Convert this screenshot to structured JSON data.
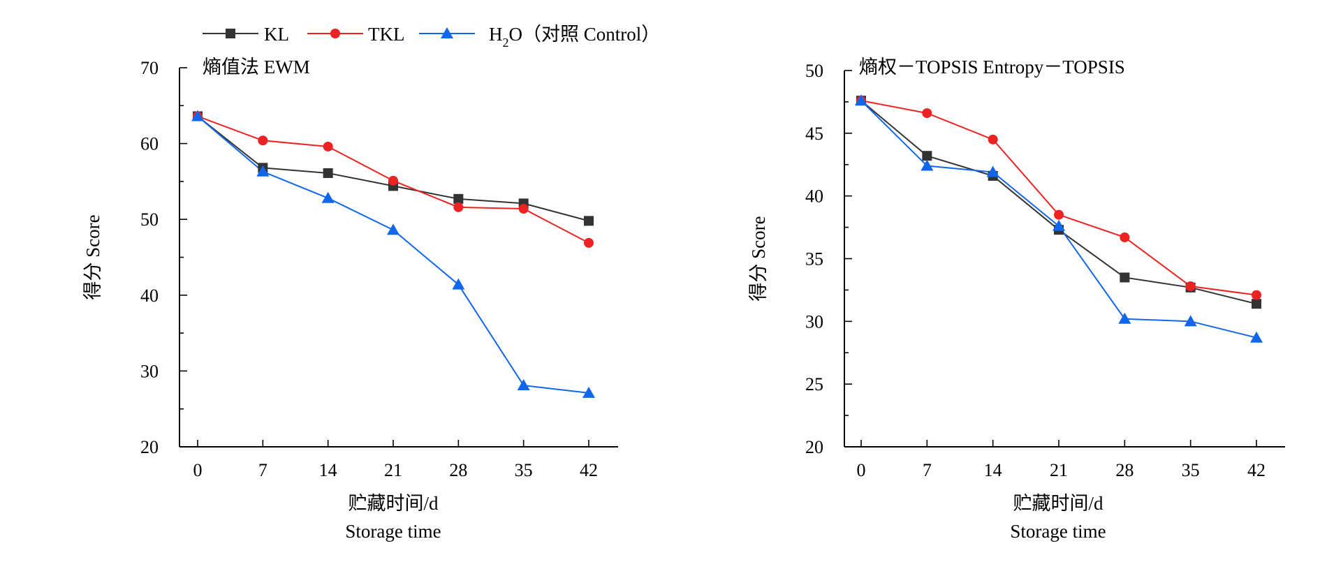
{
  "legend": [
    {
      "series": "KL",
      "label": "KL",
      "color": "#333333",
      "marker": "square"
    },
    {
      "series": "TKL",
      "label": "TKL",
      "color": "#ee2222",
      "marker": "circle"
    },
    {
      "series": "H2O",
      "label_main": "H",
      "label_sub": "2",
      "label_rest": "O（对照 Control）",
      "color": "#1166ee",
      "marker": "triangle"
    }
  ],
  "chart_data": [
    {
      "type": "line",
      "title": "熵值法 EWM",
      "xlabel": "贮藏时间/d",
      "xlabel_en": "Storage time",
      "ylabel": "得分  Score",
      "x": [
        0,
        7,
        14,
        21,
        28,
        35,
        42
      ],
      "ylim": [
        20,
        70
      ],
      "yticks": [
        20,
        30,
        40,
        50,
        60,
        70
      ],
      "grid": false,
      "legend_position": "top-left",
      "series": [
        {
          "name": "KL",
          "color": "#333333",
          "marker": "square",
          "values": [
            63.6,
            56.8,
            56.1,
            54.4,
            52.7,
            52.1,
            49.8
          ]
        },
        {
          "name": "TKL",
          "color": "#ee2222",
          "marker": "circle",
          "values": [
            63.6,
            60.4,
            59.6,
            55.1,
            51.6,
            51.4,
            46.9
          ]
        },
        {
          "name": "H2O",
          "color": "#1166ee",
          "marker": "triangle",
          "values": [
            63.6,
            56.3,
            52.8,
            48.6,
            41.4,
            28.1,
            27.1
          ]
        }
      ]
    },
    {
      "type": "line",
      "title": "熵权－TOPSIS  Entropy－TOPSIS",
      "xlabel": "贮藏时间/d",
      "xlabel_en": "Storage time",
      "ylabel": "得分  Score",
      "x": [
        0,
        7,
        14,
        21,
        28,
        35,
        42
      ],
      "ylim": [
        20,
        50
      ],
      "yticks": [
        20,
        25,
        30,
        35,
        40,
        45,
        50
      ],
      "grid": false,
      "series": [
        {
          "name": "KL",
          "color": "#333333",
          "marker": "square",
          "values": [
            47.6,
            43.2,
            41.6,
            37.3,
            33.5,
            32.7,
            31.4
          ]
        },
        {
          "name": "TKL",
          "color": "#ee2222",
          "marker": "circle",
          "values": [
            47.6,
            46.6,
            44.5,
            38.5,
            36.7,
            32.8,
            32.1
          ]
        },
        {
          "name": "H2O",
          "color": "#1166ee",
          "marker": "triangle",
          "values": [
            47.6,
            42.4,
            41.9,
            37.6,
            30.2,
            30.0,
            28.7
          ]
        }
      ]
    }
  ]
}
